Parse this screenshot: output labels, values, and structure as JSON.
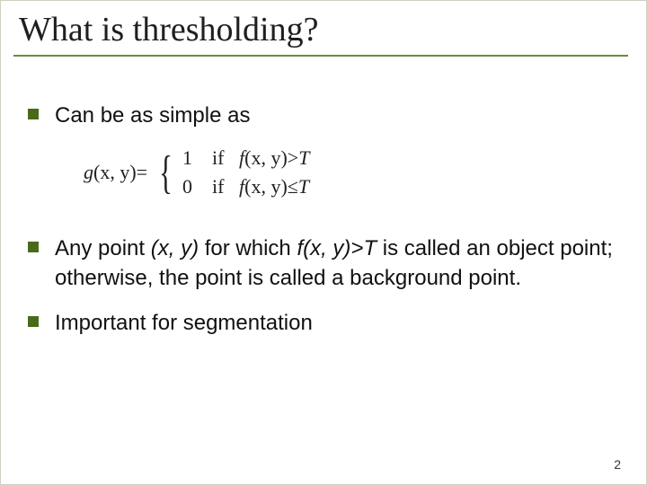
{
  "title": "What is thresholding?",
  "bullets": {
    "b1": "Can be as simple as",
    "b2_pre": "Any point ",
    "b2_xy": "(x, y)",
    "b2_mid": " for which ",
    "b2_fxy": "f(x, y)>T",
    "b2_post": " is called an object point; otherwise, the point is called a background point.",
    "b3": "Important for segmentation"
  },
  "formula": {
    "lhs_g": "g",
    "lhs_args": "(x, y)",
    "eq": "=",
    "case1_val": "1",
    "case1_if": "if",
    "case1_f": "f",
    "case1_args": "(x, y)",
    "case1_cmp": ">",
    "case1_T": "T",
    "case2_val": "0",
    "case2_if": "if",
    "case2_f": "f",
    "case2_args": "(x, y)",
    "case2_cmp": "≤",
    "case2_T": "T"
  },
  "page_number": "2",
  "colors": {
    "underline": "#6a8a3a",
    "bullet": "#4a6a1a",
    "text": "#111111",
    "background": "#ffffff"
  },
  "typography": {
    "title_font": "Times New Roman",
    "title_size_pt": 38,
    "body_font": "Arial",
    "body_size_pt": 24,
    "formula_font": "Times New Roman",
    "formula_size_pt": 22
  }
}
